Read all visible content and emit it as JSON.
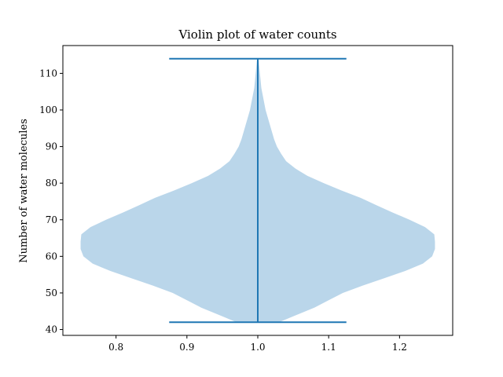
{
  "chart_data": {
    "type": "violin",
    "title": "Violin plot of water counts",
    "xlabel": "",
    "ylabel": "Number of water molecules",
    "xlim": [
      0.725,
      1.275
    ],
    "ylim": [
      38.4,
      117.6
    ],
    "x_ticks": [
      "0.8",
      "0.9",
      "1.0",
      "1.1",
      "1.2"
    ],
    "y_ticks": [
      "40",
      "50",
      "60",
      "70",
      "80",
      "90",
      "100",
      "110"
    ],
    "grid": false,
    "violin": {
      "position": 1.0,
      "min": 42,
      "max": 114,
      "bar_halfwidth": 0.125,
      "density_profile": [
        [
          42,
          0.03
        ],
        [
          44,
          0.055
        ],
        [
          46,
          0.08
        ],
        [
          48,
          0.1
        ],
        [
          50,
          0.12
        ],
        [
          52,
          0.148
        ],
        [
          54,
          0.178
        ],
        [
          56,
          0.208
        ],
        [
          58,
          0.233
        ],
        [
          60,
          0.246
        ],
        [
          62,
          0.25
        ],
        [
          64,
          0.25
        ],
        [
          66,
          0.249
        ],
        [
          68,
          0.236
        ],
        [
          70,
          0.214
        ],
        [
          72,
          0.19
        ],
        [
          74,
          0.167
        ],
        [
          76,
          0.145
        ],
        [
          78,
          0.118
        ],
        [
          80,
          0.093
        ],
        [
          82,
          0.07
        ],
        [
          84,
          0.053
        ],
        [
          86,
          0.04
        ],
        [
          88,
          0.033
        ],
        [
          90,
          0.027
        ],
        [
          92,
          0.023
        ],
        [
          94,
          0.02
        ],
        [
          96,
          0.017
        ],
        [
          98,
          0.014
        ],
        [
          100,
          0.011
        ],
        [
          102,
          0.009
        ],
        [
          104,
          0.007
        ],
        [
          106,
          0.005
        ],
        [
          108,
          0.004
        ],
        [
          110,
          0.003
        ],
        [
          112,
          0.002
        ],
        [
          114,
          0.001
        ]
      ]
    },
    "colors": {
      "body": "#bad6ea",
      "lines": "#1f77b4"
    }
  }
}
